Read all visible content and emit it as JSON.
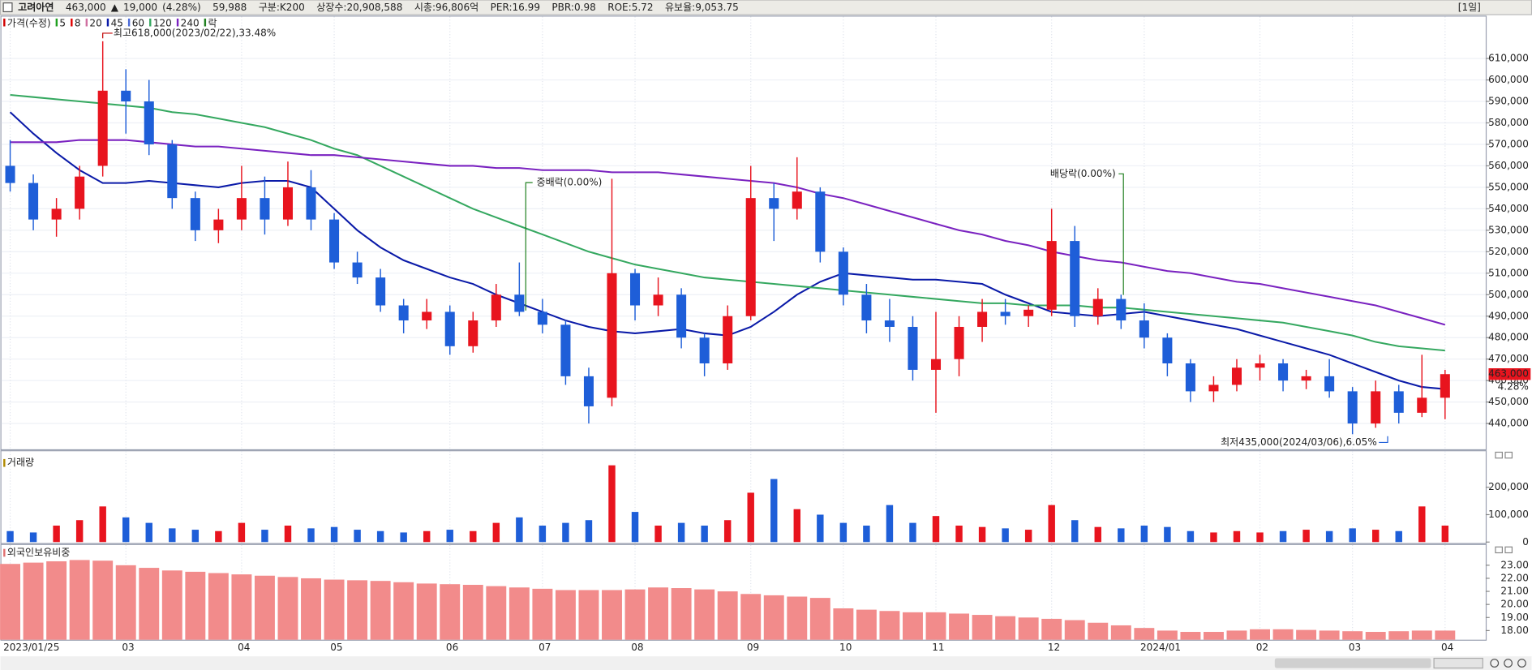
{
  "header": {
    "items": [
      {
        "text": "고려아연",
        "color": "#000000"
      },
      {
        "text": "463,000",
        "color": "#d00000"
      },
      {
        "text": "▲",
        "color": "#d00000"
      },
      {
        "text": "19,000",
        "color": "#d00000"
      },
      {
        "text": "(4.28%)",
        "color": "#d00000"
      },
      {
        "text": "59,988",
        "color": "#000000"
      },
      {
        "text": "구분:K200",
        "color": "#000000"
      },
      {
        "text": "상장수:20,908,588",
        "color": "#000000"
      },
      {
        "text": "시총:96,806억",
        "color": "#000000"
      },
      {
        "text": "PER:16.99",
        "color": "#000000"
      },
      {
        "text": "PBR:0.98",
        "color": "#000000"
      },
      {
        "text": "ROE:5.72",
        "color": "#000000"
      },
      {
        "text": "유보율:9,053.75",
        "color": "#000000"
      }
    ],
    "period_label": "[1일]"
  },
  "chart_data": [
    {
      "type": "candlestick",
      "categories": [
        "2023/01/25",
        null,
        null,
        null,
        null,
        "03",
        null,
        null,
        null,
        null,
        "04",
        null,
        null,
        null,
        "05",
        null,
        null,
        null,
        null,
        "06",
        null,
        null,
        null,
        "07",
        null,
        null,
        null,
        "08",
        null,
        null,
        null,
        null,
        "09",
        null,
        null,
        null,
        "10",
        null,
        null,
        null,
        "11",
        null,
        null,
        null,
        null,
        "12",
        null,
        null,
        null,
        "2024/01",
        null,
        null,
        null,
        null,
        "02",
        null,
        null,
        null,
        "03",
        null,
        null,
        null,
        "04"
      ],
      "open": [
        560000,
        552000,
        535000,
        540000,
        560000,
        595000,
        590000,
        570000,
        545000,
        530000,
        535000,
        545000,
        535000,
        550000,
        535000,
        515000,
        508000,
        495000,
        488000,
        492000,
        476000,
        488000,
        500000,
        492000,
        486000,
        462000,
        452000,
        510000,
        495000,
        500000,
        480000,
        468000,
        490000,
        545000,
        540000,
        548000,
        520000,
        500000,
        488000,
        485000,
        465000,
        470000,
        485000,
        492000,
        490000,
        493000,
        525000,
        490000,
        498000,
        488000,
        480000,
        468000,
        455000,
        458000,
        466000,
        468000,
        460000,
        462000,
        455000,
        440000,
        455000,
        445000,
        452000
      ],
      "high": [
        572000,
        556000,
        545000,
        560000,
        618000,
        605000,
        600000,
        572000,
        548000,
        540000,
        560000,
        555000,
        562000,
        558000,
        538000,
        520000,
        512000,
        498000,
        498000,
        495000,
        492000,
        505000,
        515000,
        498000,
        488000,
        466000,
        554000,
        512000,
        508000,
        503000,
        482000,
        495000,
        560000,
        552000,
        564000,
        550000,
        522000,
        505000,
        498000,
        490000,
        492000,
        490000,
        498000,
        498000,
        495000,
        540000,
        532000,
        503000,
        500000,
        496000,
        482000,
        470000,
        462000,
        470000,
        472000,
        470000,
        465000,
        470000,
        457000,
        460000,
        458000,
        472000,
        465000
      ],
      "low": [
        548000,
        530000,
        527000,
        535000,
        555000,
        575000,
        565000,
        540000,
        525000,
        524000,
        530000,
        528000,
        532000,
        530000,
        512000,
        505000,
        492000,
        482000,
        484000,
        472000,
        473000,
        485000,
        490000,
        482000,
        458000,
        440000,
        448000,
        488000,
        490000,
        475000,
        462000,
        465000,
        488000,
        525000,
        535000,
        515000,
        495000,
        482000,
        478000,
        460000,
        445000,
        462000,
        478000,
        486000,
        485000,
        490000,
        485000,
        486000,
        484000,
        475000,
        462000,
        450000,
        450000,
        455000,
        460000,
        455000,
        456000,
        452000,
        435000,
        438000,
        440000,
        443000,
        442000
      ],
      "close": [
        552000,
        535000,
        540000,
        555000,
        595000,
        590000,
        570000,
        545000,
        530000,
        535000,
        545000,
        535000,
        550000,
        535000,
        515000,
        508000,
        495000,
        488000,
        492000,
        476000,
        488000,
        500000,
        492000,
        486000,
        462000,
        448000,
        510000,
        495000,
        500000,
        480000,
        468000,
        490000,
        545000,
        540000,
        548000,
        520000,
        500000,
        488000,
        485000,
        465000,
        470000,
        485000,
        492000,
        490000,
        493000,
        525000,
        490000,
        498000,
        488000,
        480000,
        468000,
        455000,
        458000,
        466000,
        468000,
        460000,
        462000,
        455000,
        440000,
        455000,
        445000,
        452000,
        463000
      ],
      "up_color": "#e8141e",
      "down_color": "#1e5ed8",
      "series": [
        {
          "name": "가격(수정)",
          "color": "#d00000"
        },
        {
          "name": "5",
          "color": "#20a020"
        },
        {
          "name": "8",
          "color": "#e00000"
        },
        {
          "name": "20",
          "color": "#d070a0"
        },
        {
          "name": "45",
          "color": "#0a1aa8",
          "values": [
            585000,
            575000,
            566000,
            558000,
            552000,
            552000,
            553000,
            552000,
            551000,
            550000,
            552000,
            553000,
            553000,
            550000,
            540000,
            530000,
            522000,
            516000,
            512000,
            508000,
            505000,
            500000,
            496000,
            492000,
            488000,
            485000,
            483000,
            482000,
            483000,
            484000,
            482000,
            481000,
            485000,
            492000,
            500000,
            506000,
            510000,
            509000,
            508000,
            507000,
            507000,
            506000,
            505000,
            500000,
            496000,
            492000,
            491000,
            490000,
            491000,
            492000,
            490000,
            488000,
            486000,
            484000,
            481000,
            478000,
            475000,
            472000,
            468000,
            464000,
            460000,
            457000,
            456000
          ]
        },
        {
          "name": "60",
          "color": "#4a6ad8"
        },
        {
          "name": "120",
          "color": "#35a860",
          "values": [
            593000,
            592000,
            591000,
            590000,
            589000,
            588000,
            587000,
            585000,
            584000,
            582000,
            580000,
            578000,
            575000,
            572000,
            568000,
            565000,
            560000,
            555000,
            550000,
            545000,
            540000,
            536000,
            532000,
            528000,
            524000,
            520000,
            517000,
            514000,
            512000,
            510000,
            508000,
            507000,
            506000,
            505000,
            504000,
            503000,
            502000,
            501000,
            500000,
            499000,
            498000,
            497000,
            496000,
            496000,
            495000,
            495000,
            495000,
            494000,
            494000,
            493000,
            492000,
            491000,
            490000,
            489000,
            488000,
            487000,
            485000,
            483000,
            481000,
            478000,
            476000,
            475000,
            474000
          ]
        },
        {
          "name": "240",
          "color": "#7a22c0",
          "values": [
            571000,
            571000,
            571000,
            572000,
            572000,
            572000,
            571000,
            570000,
            569000,
            569000,
            568000,
            567000,
            566000,
            565000,
            565000,
            564000,
            563000,
            562000,
            561000,
            560000,
            560000,
            559000,
            559000,
            558000,
            558000,
            558000,
            557000,
            557000,
            557000,
            556000,
            555000,
            554000,
            553000,
            552000,
            550000,
            547000,
            545000,
            542000,
            539000,
            536000,
            533000,
            530000,
            528000,
            525000,
            523000,
            520000,
            518000,
            516000,
            515000,
            513000,
            511000,
            510000,
            508000,
            506000,
            505000,
            503000,
            501000,
            499000,
            497000,
            495000,
            492000,
            489000,
            486000
          ]
        },
        {
          "name": "락",
          "color": "#208020"
        }
      ],
      "ylim": [
        428000,
        629500
      ],
      "yticks": [
        {
          "value": 440000,
          "label": "440,000"
        },
        {
          "value": 450000,
          "label": "450,000"
        },
        {
          "value": 460000,
          "label": "460,000"
        },
        {
          "value": 470000,
          "label": "470,000"
        },
        {
          "value": 480000,
          "label": "480,000"
        },
        {
          "value": 490000,
          "label": "490,000"
        },
        {
          "value": 500000,
          "label": "500,000"
        },
        {
          "value": 510000,
          "label": "510,000"
        },
        {
          "value": 520000,
          "label": "520,000"
        },
        {
          "value": 530000,
          "label": "530,000"
        },
        {
          "value": 540000,
          "label": "540,000"
        },
        {
          "value": 550000,
          "label": "550,000"
        },
        {
          "value": 560000,
          "label": "560,000"
        },
        {
          "value": 570000,
          "label": "570,000"
        },
        {
          "value": 580000,
          "label": "580,000"
        },
        {
          "value": 590000,
          "label": "590,000"
        },
        {
          "value": 600000,
          "label": "600,000"
        },
        {
          "value": 610000,
          "label": "610,000"
        }
      ],
      "grid": true,
      "high_label": "최고618,000(2023/02/22),33.48%",
      "low_label": "최저435,000(2024/03/06),6.05%",
      "events": [
        "중배락(0.00%)",
        "배당락(0.00%)"
      ],
      "last_label": "463,000",
      "change_label": "4.28%"
    },
    {
      "type": "bar",
      "title": "거래량",
      "values": [
        40000,
        35000,
        60000,
        80000,
        130000,
        90000,
        70000,
        50000,
        45000,
        40000,
        70000,
        45000,
        60000,
        50000,
        55000,
        45000,
        40000,
        35000,
        40000,
        45000,
        40000,
        70000,
        90000,
        60000,
        70000,
        80000,
        280000,
        110000,
        60000,
        70000,
        60000,
        80000,
        180000,
        230000,
        120000,
        100000,
        70000,
        60000,
        135000,
        70000,
        95000,
        60000,
        55000,
        50000,
        45000,
        135000,
        80000,
        55000,
        50000,
        60000,
        55000,
        40000,
        35000,
        40000,
        35000,
        40000,
        45000,
        40000,
        50000,
        45000,
        40000,
        130000,
        60000
      ],
      "title_color": "#b08a00",
      "ylim": [
        0,
        310000
      ],
      "yticks": [
        0,
        {
          "value": 100000,
          "label": "100,000"
        },
        {
          "value": 200000,
          "label": "200,000"
        }
      ],
      "grid": false
    },
    {
      "type": "bar",
      "title": "외국인보유비중",
      "values": [
        23.1,
        23.2,
        23.3,
        23.4,
        23.35,
        23.0,
        22.8,
        22.6,
        22.5,
        22.4,
        22.3,
        22.2,
        22.1,
        22.0,
        21.9,
        21.85,
        21.8,
        21.7,
        21.6,
        21.55,
        21.5,
        21.4,
        21.3,
        21.2,
        21.1,
        21.1,
        21.1,
        21.15,
        21.3,
        21.25,
        21.15,
        21.0,
        20.8,
        20.7,
        20.6,
        20.5,
        19.7,
        19.6,
        19.5,
        19.4,
        19.4,
        19.3,
        19.2,
        19.1,
        19.0,
        18.9,
        18.8,
        18.6,
        18.4,
        18.2,
        18.0,
        17.9,
        17.9,
        18.0,
        18.1,
        18.1,
        18.05,
        18.0,
        17.95,
        17.9,
        17.95,
        18.0,
        18.0
      ],
      "color": "#f28b8b",
      "title_color": "#e07070",
      "ylim": [
        17.3,
        24.4
      ],
      "yticks": [
        {
          "value": 18,
          "label": "18.00"
        },
        {
          "value": 19,
          "label": "19.00"
        },
        {
          "value": 20,
          "label": "20.00"
        },
        {
          "value": 21,
          "label": "21.00"
        },
        {
          "value": 22,
          "label": "22.00"
        },
        {
          "value": 23,
          "label": "23.00"
        }
      ],
      "grid": false
    }
  ]
}
